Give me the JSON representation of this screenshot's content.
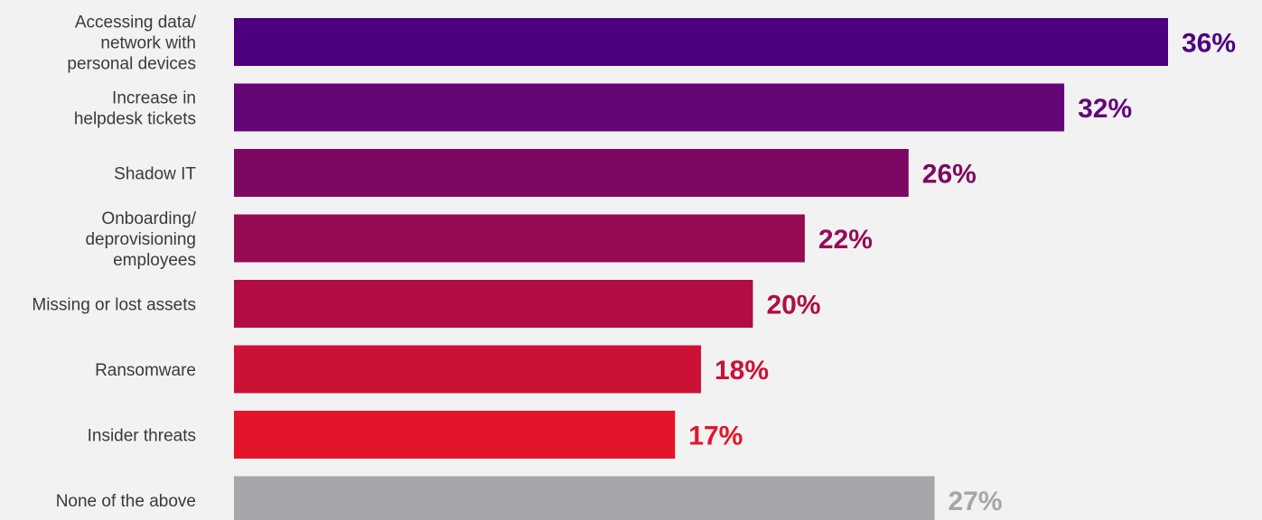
{
  "chart_data": {
    "type": "bar",
    "orientation": "horizontal",
    "categories": [
      [
        "Accessing data/",
        "network with",
        "personal devices"
      ],
      [
        "Increase in",
        "helpdesk tickets"
      ],
      [
        "Shadow IT"
      ],
      [
        "Onboarding/",
        "deprovisioning",
        "employees"
      ],
      [
        "Missing or lost assets"
      ],
      [
        "Ransomware"
      ],
      [
        "Insider threats"
      ],
      [
        "None of the above"
      ]
    ],
    "values": [
      36,
      32,
      26,
      22,
      20,
      18,
      17,
      27
    ],
    "value_labels": [
      "36%",
      "32%",
      "26%",
      "22%",
      "20%",
      "18%",
      "17%",
      "27%"
    ],
    "colors": [
      "#4c0080",
      "#640578",
      "#7c0862",
      "#960c52",
      "#b10d44",
      "#cb1136",
      "#e4142a",
      "#a6a6aa"
    ],
    "title": "",
    "xlabel": "",
    "ylabel": "",
    "xlim": [
      0,
      36
    ],
    "grid": false,
    "legend": "none"
  }
}
